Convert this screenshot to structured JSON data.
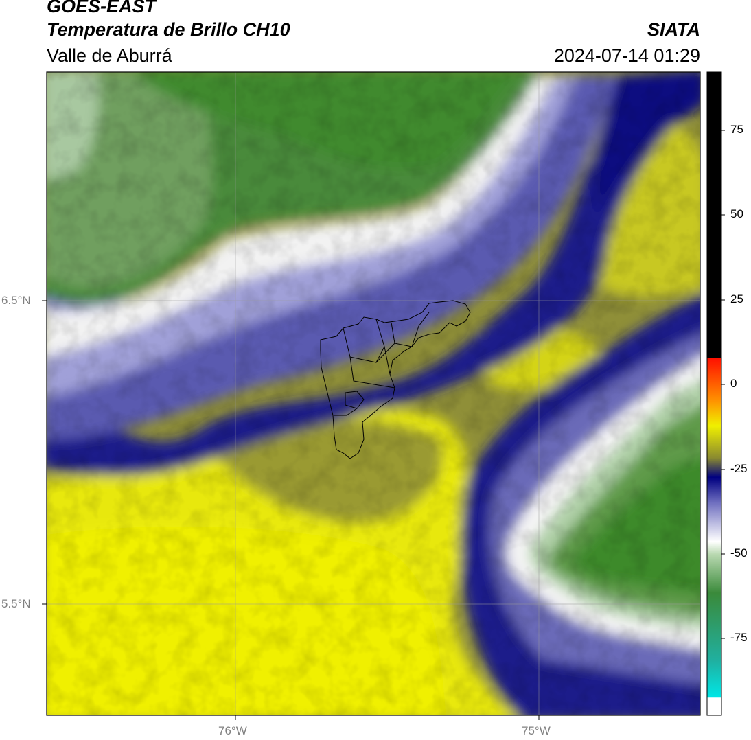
{
  "header": {
    "satellite": "GOES-EAST",
    "product": "Temperatura de Brillo CH10",
    "region": "Valle de Aburrá",
    "organization": "SIATA",
    "datetime": "2024-07-14 01:29"
  },
  "map": {
    "lat_labels": [
      "6.5°N",
      "5.5°N"
    ],
    "lon_labels": [
      "76°W",
      "75°W"
    ]
  },
  "colorbar": {
    "ticks": [
      "75",
      "50",
      "25",
      "0",
      "-25",
      "-50",
      "-75"
    ]
  }
}
